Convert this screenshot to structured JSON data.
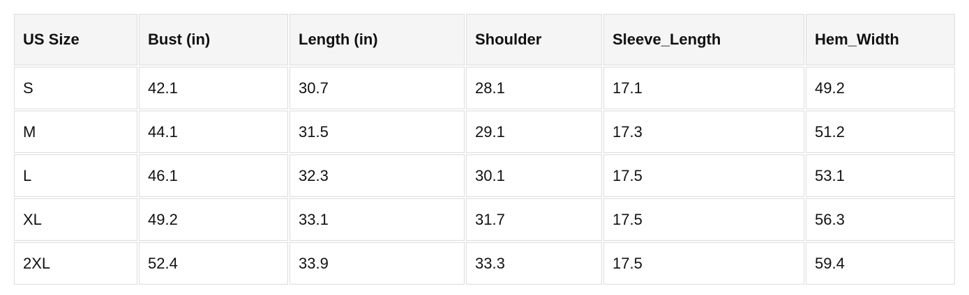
{
  "table": {
    "headers": [
      "US Size",
      "Bust (in)",
      "Length (in)",
      "Shoulder",
      "Sleeve_Length",
      "Hem_Width"
    ],
    "rows": [
      [
        "S",
        "42.1",
        "30.7",
        "28.1",
        "17.1",
        "49.2"
      ],
      [
        "M",
        "44.1",
        "31.5",
        "29.1",
        "17.3",
        "51.2"
      ],
      [
        "L",
        "46.1",
        "32.3",
        "30.1",
        "17.5",
        "53.1"
      ],
      [
        "XL",
        "49.2",
        "33.1",
        "31.7",
        "17.5",
        "56.3"
      ],
      [
        "2XL",
        "52.4",
        "33.9",
        "33.3",
        "17.5",
        "59.4"
      ]
    ]
  }
}
